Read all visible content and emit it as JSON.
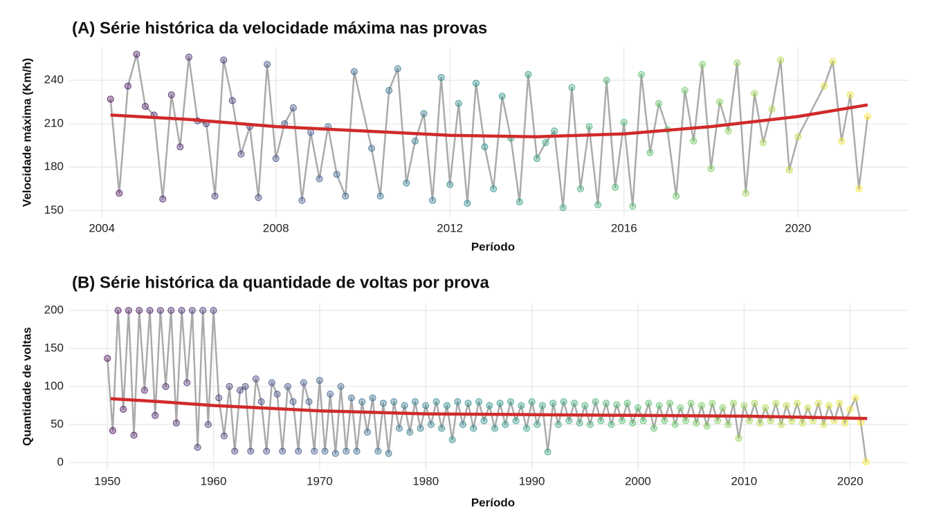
{
  "chart_data": [
    {
      "type": "line",
      "title": "(A) Série histórica da velocidade máxima nas provas",
      "xlabel": "Período",
      "ylabel": "Velocidade máxima (Km/h)",
      "x": [
        2004.2,
        2004.4,
        2004.6,
        2004.8,
        2005.0,
        2005.2,
        2005.4,
        2005.6,
        2005.8,
        2006.0,
        2006.2,
        2006.4,
        2006.6,
        2006.8,
        2007.0,
        2007.2,
        2007.4,
        2007.6,
        2007.8,
        2008.0,
        2008.2,
        2008.4,
        2008.6,
        2008.8,
        2009.0,
        2009.2,
        2009.4,
        2009.6,
        2009.8,
        2010.2,
        2010.4,
        2010.6,
        2010.8,
        2011.0,
        2011.2,
        2011.4,
        2011.6,
        2011.8,
        2012.0,
        2012.2,
        2012.4,
        2012.6,
        2012.8,
        2013.0,
        2013.2,
        2013.4,
        2013.6,
        2013.8,
        2014.0,
        2014.2,
        2014.4,
        2014.6,
        2014.8,
        2015.0,
        2015.2,
        2015.4,
        2015.6,
        2015.8,
        2016.0,
        2016.2,
        2016.4,
        2016.6,
        2016.8,
        2017.0,
        2017.2,
        2017.4,
        2017.6,
        2017.8,
        2018.0,
        2018.2,
        2018.4,
        2018.6,
        2018.8,
        2019.0,
        2019.2,
        2019.4,
        2019.6,
        2019.8,
        2020.0,
        2020.6,
        2020.8,
        2021.0,
        2021.2,
        2021.4,
        2021.6
      ],
      "values": [
        227,
        162,
        236,
        258,
        222,
        216,
        158,
        230,
        194,
        256,
        212,
        210,
        160,
        254,
        226,
        189,
        208,
        159,
        251,
        186,
        210,
        221,
        157,
        204,
        172,
        208,
        175,
        160,
        246,
        193,
        160,
        233,
        248,
        169,
        198,
        217,
        157,
        242,
        168,
        224,
        155,
        238,
        194,
        165,
        229,
        200,
        156,
        244,
        186,
        197,
        205,
        152,
        235,
        165,
        208,
        154,
        240,
        166,
        211,
        153,
        244,
        190,
        224,
        206,
        160,
        233,
        198,
        251,
        179,
        225,
        205,
        252,
        162,
        231,
        197,
        220,
        254,
        178,
        201,
        236,
        253,
        198,
        230,
        165,
        215
      ],
      "trend_x": [
        2004.2,
        2006,
        2008,
        2010,
        2012,
        2014,
        2016,
        2018,
        2020,
        2021.6
      ],
      "trend_values": [
        216,
        213,
        208,
        205,
        202,
        201,
        203,
        208,
        215,
        223
      ],
      "xlim": [
        2003.25,
        2022.54
      ],
      "ylim": [
        145,
        263
      ],
      "xticks": [
        2004,
        2008,
        2012,
        2016,
        2020
      ],
      "yticks": [
        150,
        180,
        210,
        240
      ],
      "grid": true,
      "line_color": "#aaaaaa",
      "trend_color": "#d12a2a",
      "color_scale": [
        "#440154",
        "#3b528b",
        "#21918c",
        "#5ec962",
        "#fde725"
      ]
    },
    {
      "type": "line",
      "title": "(B) Série histórica da quantidade de voltas por prova",
      "xlabel": "Período",
      "ylabel": "Quantidade de voltas",
      "x": [
        1950.0,
        1950.5,
        1951.0,
        1951.5,
        1952.0,
        1952.5,
        1953.0,
        1953.5,
        1954.0,
        1954.5,
        1955.0,
        1955.5,
        1956.0,
        1956.5,
        1957.0,
        1957.5,
        1958.0,
        1958.5,
        1959.0,
        1959.5,
        1960.0,
        1960.5,
        1961.0,
        1961.5,
        1962.0,
        1962.5,
        1963.0,
        1963.5,
        1964.0,
        1964.5,
        1965.0,
        1965.5,
        1966.0,
        1966.5,
        1967.0,
        1967.5,
        1968.0,
        1968.5,
        1969.0,
        1969.5,
        1970.0,
        1970.5,
        1971.0,
        1971.5,
        1972.0,
        1972.5,
        1973.0,
        1973.5,
        1974.0,
        1974.5,
        1975.0,
        1975.5,
        1976.0,
        1976.5,
        1977.0,
        1977.5,
        1978.0,
        1978.5,
        1979.0,
        1979.5,
        1980.0,
        1980.5,
        1981.0,
        1981.5,
        1982.0,
        1982.5,
        1983.0,
        1983.5,
        1984.0,
        1984.5,
        1985.0,
        1985.5,
        1986.0,
        1986.5,
        1987.0,
        1987.5,
        1988.0,
        1988.5,
        1989.0,
        1989.5,
        1990.0,
        1990.5,
        1991.0,
        1991.5,
        1992.0,
        1992.5,
        1993.0,
        1993.5,
        1994.0,
        1994.5,
        1995.0,
        1995.5,
        1996.0,
        1996.5,
        1997.0,
        1997.5,
        1998.0,
        1998.5,
        1999.0,
        1999.5,
        2000.0,
        2000.5,
        2001.0,
        2001.5,
        2002.0,
        2002.5,
        2003.0,
        2003.5,
        2004.0,
        2004.5,
        2005.0,
        2005.5,
        2006.0,
        2006.5,
        2007.0,
        2007.5,
        2008.0,
        2008.5,
        2009.0,
        2009.5,
        2010.0,
        2010.5,
        2011.0,
        2011.5,
        2012.0,
        2012.5,
        2013.0,
        2013.5,
        2014.0,
        2014.5,
        2015.0,
        2015.5,
        2016.0,
        2016.5,
        2017.0,
        2017.5,
        2018.0,
        2018.5,
        2019.0,
        2019.5,
        2020.0,
        2020.5,
        2021.0,
        2021.5
      ],
      "values": [
        137,
        42,
        200,
        70,
        200,
        36,
        200,
        95,
        200,
        62,
        200,
        100,
        200,
        52,
        200,
        105,
        200,
        20,
        200,
        50,
        200,
        85,
        35,
        100,
        15,
        95,
        100,
        15,
        110,
        80,
        15,
        105,
        90,
        15,
        100,
        80,
        15,
        105,
        80,
        15,
        108,
        15,
        90,
        12,
        100,
        15,
        85,
        15,
        80,
        40,
        85,
        15,
        78,
        12,
        80,
        45,
        75,
        40,
        80,
        45,
        75,
        50,
        80,
        45,
        75,
        30,
        80,
        50,
        78,
        45,
        80,
        55,
        75,
        45,
        78,
        50,
        80,
        55,
        75,
        45,
        80,
        50,
        75,
        14,
        78,
        50,
        80,
        55,
        78,
        52,
        75,
        50,
        80,
        55,
        78,
        50,
        76,
        55,
        78,
        52,
        72,
        55,
        78,
        45,
        75,
        55,
        78,
        50,
        72,
        55,
        78,
        52,
        75,
        48,
        78,
        55,
        72,
        50,
        78,
        32,
        75,
        55,
        78,
        52,
        72,
        55,
        78,
        50,
        75,
        55,
        78,
        52,
        72,
        55,
        78,
        50,
        75,
        55,
        78,
        52,
        70,
        85,
        53,
        1
      ],
      "trend_x": [
        1950.3,
        1955,
        1960,
        1970,
        1980,
        1990,
        2000,
        2010,
        2021.6
      ],
      "trend_values": [
        84,
        80,
        75,
        68,
        64,
        63,
        62,
        61,
        58
      ],
      "xlim": [
        1946.4,
        2025.5
      ],
      "ylim": [
        -10,
        210
      ],
      "xticks": [
        1950,
        1960,
        1970,
        1980,
        1990,
        2000,
        2010,
        2020
      ],
      "yticks": [
        0,
        50,
        100,
        150,
        200
      ],
      "grid": true,
      "line_color": "#aaaaaa",
      "trend_color": "#d12a2a",
      "color_scale": [
        "#440154",
        "#3b528b",
        "#21918c",
        "#5ec962",
        "#fde725"
      ]
    }
  ]
}
